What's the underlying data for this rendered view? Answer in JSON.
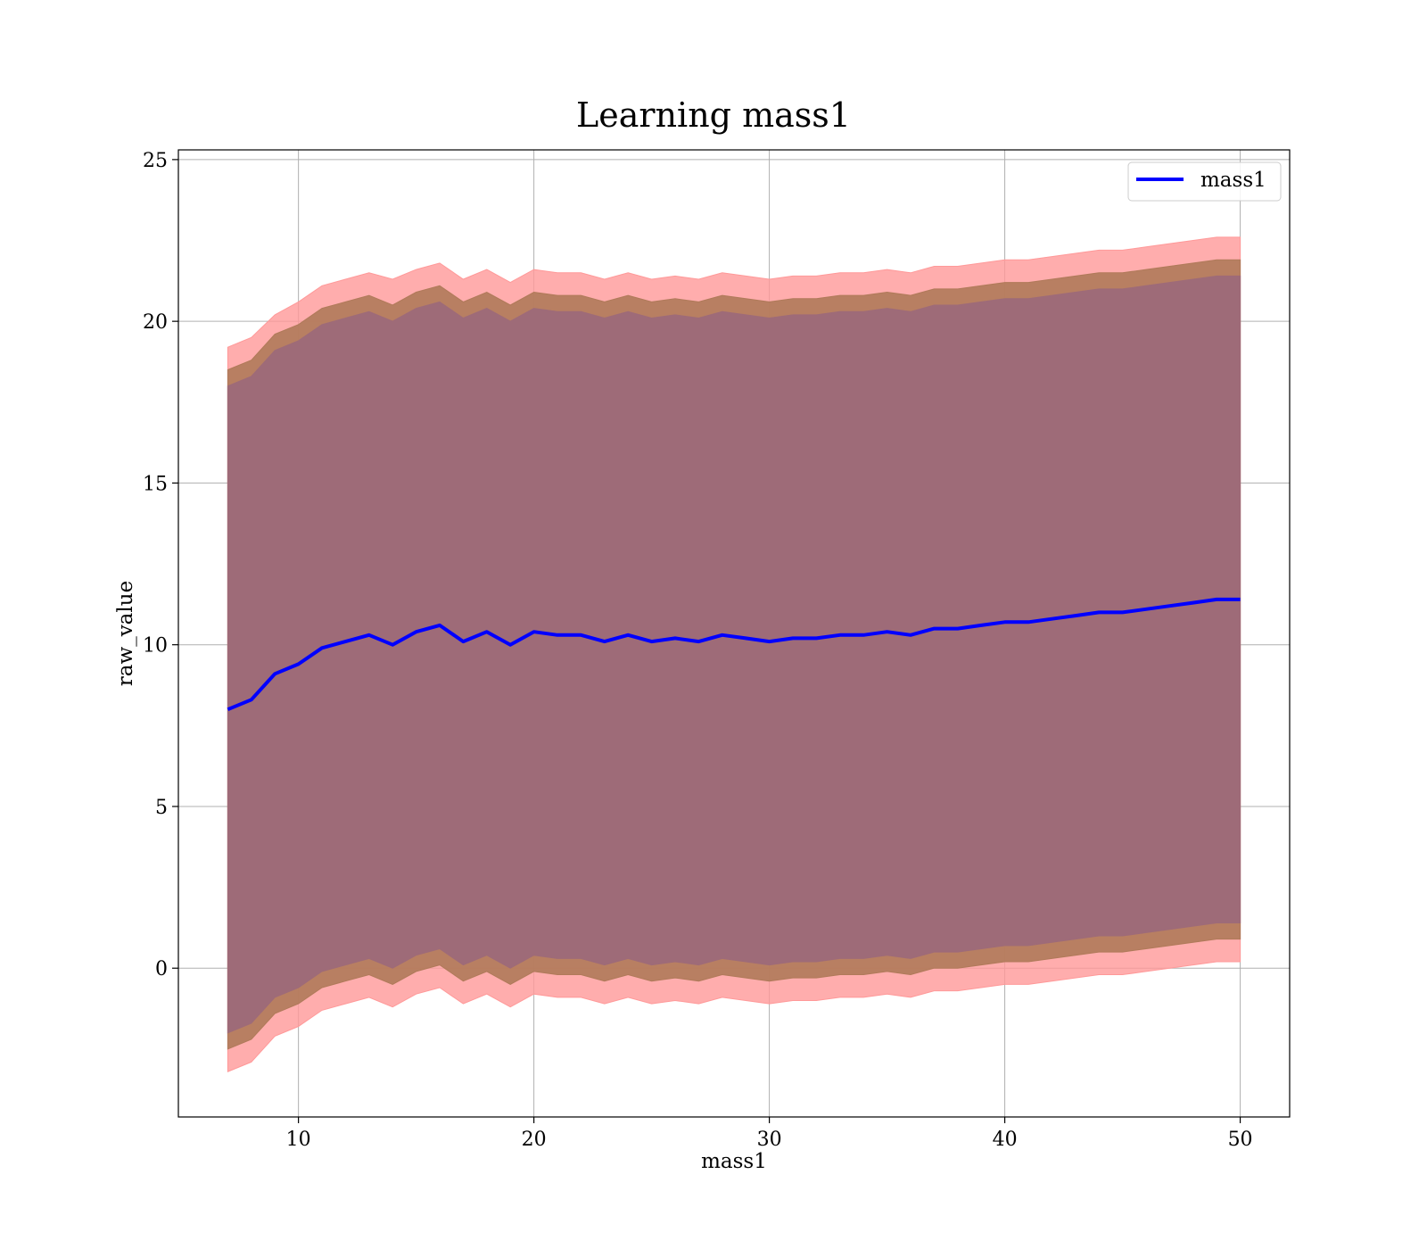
{
  "chart_data": {
    "type": "area",
    "title": "Learning mass1",
    "xlabel": "mass1",
    "ylabel": "raw_value",
    "xlim": [
      4.9,
      52.1
    ],
    "ylim": [
      -4.6,
      25.3
    ],
    "xticks": [
      10,
      20,
      30,
      40,
      50
    ],
    "yticks": [
      0,
      5,
      10,
      15,
      20,
      25
    ],
    "grid": true,
    "legend": {
      "position": "top-right",
      "entries": [
        "mass1"
      ]
    },
    "colors": {
      "line": "#0000ff",
      "outer_band": "#ff9999",
      "middle_band": "#b07a5a",
      "inner_band": "#9e6b78",
      "grid": "#b0b0b0",
      "axes": "#000000"
    },
    "series": [
      {
        "name": "mass1",
        "role": "mean",
        "x": [
          7,
          8,
          9,
          10,
          11,
          12,
          13,
          14,
          15,
          16,
          17,
          18,
          19,
          20,
          21,
          22,
          23,
          24,
          25,
          26,
          27,
          28,
          29,
          30,
          31,
          32,
          33,
          34,
          35,
          36,
          37,
          38,
          39,
          40,
          41,
          42,
          43,
          44,
          45,
          46,
          47,
          48,
          49,
          50
        ],
        "y": [
          8.0,
          8.3,
          9.1,
          9.4,
          9.9,
          10.1,
          10.3,
          10.0,
          10.4,
          10.6,
          10.1,
          10.4,
          10.0,
          10.4,
          10.3,
          10.3,
          10.1,
          10.3,
          10.1,
          10.2,
          10.1,
          10.3,
          10.2,
          10.1,
          10.2,
          10.2,
          10.3,
          10.3,
          10.4,
          10.3,
          10.5,
          10.5,
          10.6,
          10.7,
          10.7,
          10.8,
          10.9,
          11.0,
          11.0,
          11.1,
          11.2,
          11.3,
          11.4,
          11.4
        ]
      },
      {
        "name": "",
        "role": "outer band",
        "x": [
          7,
          8,
          9,
          10,
          11,
          12,
          13,
          14,
          15,
          16,
          17,
          18,
          19,
          20,
          21,
          22,
          23,
          24,
          25,
          26,
          27,
          28,
          29,
          30,
          31,
          32,
          33,
          34,
          35,
          36,
          37,
          38,
          39,
          40,
          41,
          42,
          43,
          44,
          45,
          46,
          47,
          48,
          49,
          50
        ],
        "upper": [
          19.2,
          19.5,
          20.2,
          20.6,
          21.1,
          21.3,
          21.5,
          21.3,
          21.6,
          21.8,
          21.3,
          21.6,
          21.2,
          21.6,
          21.5,
          21.5,
          21.3,
          21.5,
          21.3,
          21.4,
          21.3,
          21.5,
          21.4,
          21.3,
          21.4,
          21.4,
          21.5,
          21.5,
          21.6,
          21.5,
          21.7,
          21.7,
          21.8,
          21.9,
          21.9,
          22.0,
          22.1,
          22.2,
          22.2,
          22.3,
          22.4,
          22.5,
          22.6,
          22.6
        ],
        "lower": [
          -3.2,
          -2.9,
          -2.1,
          -1.8,
          -1.3,
          -1.1,
          -0.9,
          -1.2,
          -0.8,
          -0.6,
          -1.1,
          -0.8,
          -1.2,
          -0.8,
          -0.9,
          -0.9,
          -1.1,
          -0.9,
          -1.1,
          -1.0,
          -1.1,
          -0.9,
          -1.0,
          -1.1,
          -1.0,
          -1.0,
          -0.9,
          -0.9,
          -0.8,
          -0.9,
          -0.7,
          -0.7,
          -0.6,
          -0.5,
          -0.5,
          -0.4,
          -0.3,
          -0.2,
          -0.2,
          -0.1,
          0.0,
          0.1,
          0.2,
          0.2
        ]
      },
      {
        "name": "",
        "role": "middle band",
        "x": [
          7,
          8,
          9,
          10,
          11,
          12,
          13,
          14,
          15,
          16,
          17,
          18,
          19,
          20,
          21,
          22,
          23,
          24,
          25,
          26,
          27,
          28,
          29,
          30,
          31,
          32,
          33,
          34,
          35,
          36,
          37,
          38,
          39,
          40,
          41,
          42,
          43,
          44,
          45,
          46,
          47,
          48,
          49,
          50
        ],
        "upper": [
          18.5,
          18.8,
          19.6,
          19.9,
          20.4,
          20.6,
          20.8,
          20.5,
          20.9,
          21.1,
          20.6,
          20.9,
          20.5,
          20.9,
          20.8,
          20.8,
          20.6,
          20.8,
          20.6,
          20.7,
          20.6,
          20.8,
          20.7,
          20.6,
          20.7,
          20.7,
          20.8,
          20.8,
          20.9,
          20.8,
          21.0,
          21.0,
          21.1,
          21.2,
          21.2,
          21.3,
          21.4,
          21.5,
          21.5,
          21.6,
          21.7,
          21.8,
          21.9,
          21.9
        ],
        "lower": [
          -2.5,
          -2.2,
          -1.4,
          -1.1,
          -0.6,
          -0.4,
          -0.2,
          -0.5,
          -0.1,
          0.1,
          -0.4,
          -0.1,
          -0.5,
          -0.1,
          -0.2,
          -0.2,
          -0.4,
          -0.2,
          -0.4,
          -0.3,
          -0.4,
          -0.2,
          -0.3,
          -0.4,
          -0.3,
          -0.3,
          -0.2,
          -0.2,
          -0.1,
          -0.2,
          0.0,
          0.0,
          0.1,
          0.2,
          0.2,
          0.3,
          0.4,
          0.5,
          0.5,
          0.6,
          0.7,
          0.8,
          0.9,
          0.9
        ]
      },
      {
        "name": "",
        "role": "inner band",
        "x": [
          7,
          8,
          9,
          10,
          11,
          12,
          13,
          14,
          15,
          16,
          17,
          18,
          19,
          20,
          21,
          22,
          23,
          24,
          25,
          26,
          27,
          28,
          29,
          30,
          31,
          32,
          33,
          34,
          35,
          36,
          37,
          38,
          39,
          40,
          41,
          42,
          43,
          44,
          45,
          46,
          47,
          48,
          49,
          50
        ],
        "upper": [
          18.0,
          18.3,
          19.1,
          19.4,
          19.9,
          20.1,
          20.3,
          20.0,
          20.4,
          20.6,
          20.1,
          20.4,
          20.0,
          20.4,
          20.3,
          20.3,
          20.1,
          20.3,
          20.1,
          20.2,
          20.1,
          20.3,
          20.2,
          20.1,
          20.2,
          20.2,
          20.3,
          20.3,
          20.4,
          20.3,
          20.5,
          20.5,
          20.6,
          20.7,
          20.7,
          20.8,
          20.9,
          21.0,
          21.0,
          21.1,
          21.2,
          21.3,
          21.4,
          21.4
        ],
        "lower": [
          -2.0,
          -1.7,
          -0.9,
          -0.6,
          -0.1,
          0.1,
          0.3,
          0.0,
          0.4,
          0.6,
          0.1,
          0.4,
          0.0,
          0.4,
          0.3,
          0.3,
          0.1,
          0.3,
          0.1,
          0.2,
          0.1,
          0.3,
          0.2,
          0.1,
          0.2,
          0.2,
          0.3,
          0.3,
          0.4,
          0.3,
          0.5,
          0.5,
          0.6,
          0.7,
          0.7,
          0.8,
          0.9,
          1.0,
          1.0,
          1.1,
          1.2,
          1.3,
          1.4,
          1.4
        ]
      }
    ]
  }
}
